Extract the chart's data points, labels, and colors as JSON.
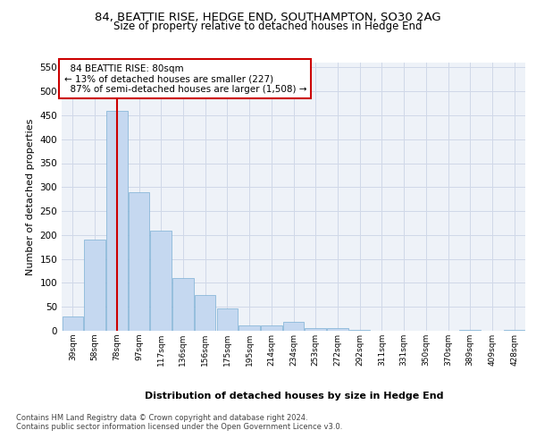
{
  "title_line1": "84, BEATTIE RISE, HEDGE END, SOUTHAMPTON, SO30 2AG",
  "title_line2": "Size of property relative to detached houses in Hedge End",
  "xlabel": "Distribution of detached houses by size in Hedge End",
  "ylabel": "Number of detached properties",
  "categories": [
    "39sqm",
    "58sqm",
    "78sqm",
    "97sqm",
    "117sqm",
    "136sqm",
    "156sqm",
    "175sqm",
    "195sqm",
    "214sqm",
    "234sqm",
    "253sqm",
    "272sqm",
    "292sqm",
    "311sqm",
    "331sqm",
    "350sqm",
    "370sqm",
    "389sqm",
    "409sqm",
    "428sqm"
  ],
  "values": [
    30,
    190,
    460,
    290,
    210,
    110,
    75,
    47,
    12,
    11,
    18,
    6,
    5,
    1,
    0,
    0,
    0,
    0,
    2,
    0,
    1
  ],
  "bar_color": "#c5d8f0",
  "bar_edge_color": "#7bafd4",
  "property_label": "84 BEATTIE RISE: 80sqm",
  "pct_smaller": 13,
  "pct_smaller_count": 227,
  "pct_larger_label": "87% of semi-detached houses are larger (1,508)",
  "annotation_box_color": "#cc0000",
  "vline_color": "#cc0000",
  "ylim": [
    0,
    560
  ],
  "yticks": [
    0,
    50,
    100,
    150,
    200,
    250,
    300,
    350,
    400,
    450,
    500,
    550
  ],
  "grid_color": "#d0d8e8",
  "background_color": "#eef2f8",
  "footer_line1": "Contains HM Land Registry data © Crown copyright and database right 2024.",
  "footer_line2": "Contains public sector information licensed under the Open Government Licence v3.0."
}
